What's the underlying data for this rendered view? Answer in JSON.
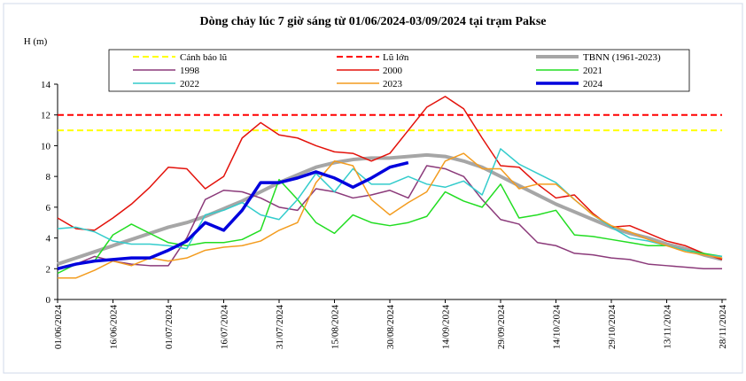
{
  "chart_data": {
    "type": "line",
    "title": "Dòng chảy lúc 7 giờ sáng từ 01/06/2024-03/09/2024 tại trạm Pakse",
    "y_label": "H (m)",
    "x": [
      "01/06/2024",
      "06/06/2024",
      "11/06/2024",
      "16/06/2024",
      "21/06/2024",
      "26/06/2024",
      "01/07/2024",
      "06/07/2024",
      "11/07/2024",
      "16/07/2024",
      "21/07/2024",
      "26/07/2024",
      "31/07/2024",
      "05/08/2024",
      "10/08/2024",
      "15/08/2024",
      "20/08/2024",
      "25/08/2024",
      "30/08/2024",
      "04/09/2024",
      "09/09/2024",
      "14/09/2024",
      "19/09/2024",
      "24/09/2024",
      "29/09/2024",
      "04/10/2024",
      "09/10/2024",
      "14/10/2024",
      "19/10/2024",
      "24/10/2024",
      "29/10/2024",
      "03/11/2024",
      "08/11/2024",
      "13/11/2024",
      "18/11/2024",
      "23/11/2024",
      "28/11/2024"
    ],
    "xlim": [
      "01/06/2024",
      "28/11/2024"
    ],
    "xticks": [
      "01/06/2024",
      "16/06/2024",
      "01/07/2024",
      "16/07/2024",
      "31/07/2024",
      "15/08/2024",
      "30/08/2024",
      "14/09/2024",
      "29/09/2024",
      "14/10/2024",
      "29/10/2024",
      "13/11/2024",
      "28/11/2024"
    ],
    "ylim": [
      0,
      14
    ],
    "yticks": [
      0,
      2,
      4,
      6,
      8,
      10,
      12,
      14
    ],
    "reference_lines": [
      {
        "name": "Cảnh báo lũ",
        "color": "#ffff00",
        "value": 11
      },
      {
        "name": "Lũ lớn",
        "color": "#ff0000",
        "value": 12
      }
    ],
    "series": [
      {
        "name": "TBNN (1961-2023)",
        "color": "#a6a6a6",
        "width": 4,
        "values": [
          2.3,
          2.7,
          3.1,
          3.5,
          3.9,
          4.3,
          4.7,
          5.0,
          5.4,
          5.9,
          6.4,
          7.0,
          7.6,
          8.1,
          8.6,
          8.9,
          9.1,
          9.2,
          9.2,
          9.3,
          9.4,
          9.3,
          9.0,
          8.6,
          8.0,
          7.4,
          6.8,
          6.2,
          5.7,
          5.2,
          4.7,
          4.3,
          4.0,
          3.6,
          3.3,
          2.9,
          2.6
        ]
      },
      {
        "name": "1998",
        "color": "#8b3a7a",
        "width": 1.5,
        "values": [
          2.0,
          2.3,
          2.8,
          2.5,
          2.3,
          2.2,
          2.2,
          4.0,
          6.5,
          7.1,
          7.0,
          6.6,
          6.0,
          5.8,
          7.2,
          7.0,
          6.6,
          6.8,
          7.1,
          6.6,
          8.7,
          8.5,
          8.0,
          6.5,
          5.2,
          4.9,
          3.7,
          3.5,
          3.0,
          2.9,
          2.7,
          2.6,
          2.3,
          2.2,
          2.1,
          2.0,
          2.0
        ]
      },
      {
        "name": "2000",
        "color": "#e3120b",
        "width": 1.5,
        "values": [
          5.3,
          4.6,
          4.5,
          5.3,
          6.2,
          7.3,
          8.6,
          8.5,
          7.2,
          8.0,
          10.5,
          11.5,
          10.7,
          10.5,
          10.0,
          9.6,
          9.5,
          9.0,
          9.5,
          11.0,
          12.5,
          13.2,
          12.4,
          10.5,
          8.7,
          8.6,
          7.5,
          6.6,
          6.8,
          5.6,
          4.7,
          4.8,
          4.3,
          3.8,
          3.5,
          3.0,
          2.6
        ]
      },
      {
        "name": "2021",
        "color": "#22dd22",
        "width": 1.5,
        "values": [
          1.7,
          2.3,
          2.5,
          4.2,
          4.9,
          4.3,
          3.7,
          3.5,
          3.7,
          3.7,
          3.9,
          4.5,
          7.8,
          6.5,
          5.0,
          4.3,
          5.5,
          5.0,
          4.8,
          5.0,
          5.4,
          7.0,
          6.4,
          6.0,
          7.5,
          5.3,
          5.5,
          5.8,
          4.2,
          4.1,
          3.9,
          3.7,
          3.5,
          3.5,
          3.2,
          3.0,
          2.8
        ]
      },
      {
        "name": "2022",
        "color": "#33cccc",
        "width": 1.5,
        "values": [
          4.6,
          4.7,
          4.4,
          3.8,
          3.6,
          3.6,
          3.5,
          3.3,
          5.5,
          5.8,
          6.3,
          5.5,
          5.2,
          6.5,
          8.2,
          7.0,
          8.5,
          7.5,
          7.5,
          8.0,
          7.5,
          7.3,
          7.7,
          6.8,
          9.8,
          8.8,
          8.2,
          7.6,
          6.5,
          5.5,
          4.7,
          4.0,
          3.8,
          3.5,
          3.2,
          2.9,
          2.8
        ]
      },
      {
        "name": "2023",
        "color": "#f39c1f",
        "width": 1.5,
        "values": [
          1.4,
          1.4,
          1.9,
          2.5,
          2.2,
          2.7,
          2.5,
          2.7,
          3.2,
          3.4,
          3.5,
          3.8,
          4.5,
          5.0,
          7.6,
          9.0,
          8.7,
          6.5,
          5.5,
          6.3,
          7.0,
          9.0,
          9.5,
          8.5,
          8.5,
          7.2,
          7.5,
          7.5,
          6.5,
          5.5,
          4.8,
          4.4,
          3.9,
          3.5,
          3.1,
          2.9,
          2.7
        ]
      },
      {
        "name": "2024",
        "color": "#0000dd",
        "width": 3.5,
        "values": [
          2.0,
          2.3,
          2.5,
          2.6,
          2.7,
          2.7,
          3.2,
          3.8,
          5.0,
          4.5,
          5.8,
          7.6,
          7.6,
          7.9,
          8.3,
          7.9,
          7.3,
          7.9,
          8.6,
          8.9,
          null,
          null,
          null,
          null,
          null,
          null,
          null,
          null,
          null,
          null,
          null,
          null,
          null,
          null,
          null,
          null,
          null
        ]
      }
    ]
  }
}
